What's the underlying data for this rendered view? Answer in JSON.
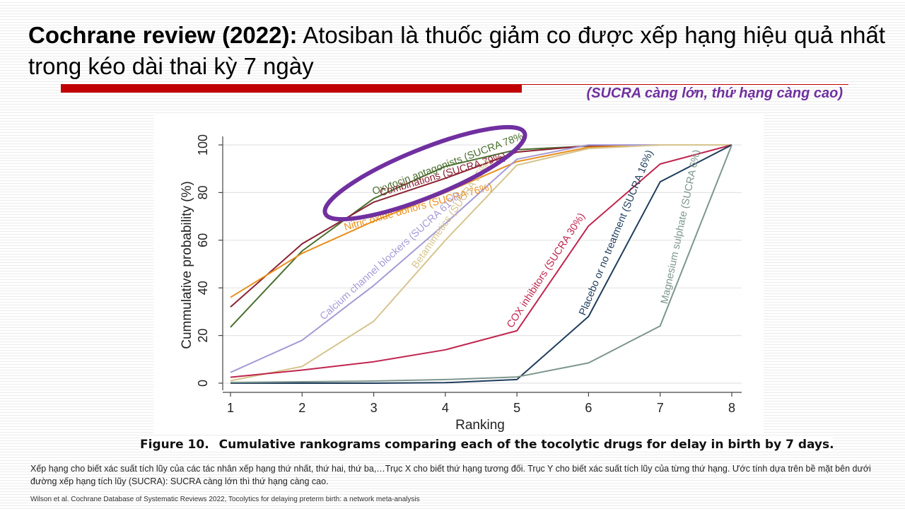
{
  "slide": {
    "title_bold": "Cochrane review (2022):",
    "title_rest": " Atosiban là thuốc giảm co được xếp hạng hiệu quả nhất trong kéo dài thai kỳ 7 ngày",
    "note": "(SUCRA càng lớn, thứ hạng càng cao)",
    "caption_label": "Figure 10.",
    "caption_text": "Cumulative rankograms comparing each of the tocolytic drugs for delay in birth by 7 days.",
    "description": "Xếp hạng cho biết xác suất tích lũy của các tác nhân xếp hạng thứ nhất, thứ hai, thứ ba,…Trục X cho biết thứ hạng tương đối. Trục Y cho biết xác suất tích lũy của từng thứ hạng. Ước tính dựa trên bề mặt bên dưới đường xếp hạng tích lũy (SUCRA): SUCRA càng lớn thì thứ hạng càng cao.",
    "source": "Wilson et al. Cochrane Database of Systematic Reviews 2022, Tocolytics for delaying preterm birth: a network meta-analysis",
    "colors": {
      "title_bar": "#c00000",
      "note": "#7030a0",
      "highlight": "#7030a0"
    }
  },
  "chart_data": {
    "type": "line",
    "xlabel": "Ranking",
    "ylabel": "Cummulative probability (%)",
    "x": [
      1,
      2,
      3,
      4,
      5,
      6,
      7,
      8
    ],
    "xlim": [
      1,
      8
    ],
    "ylim": [
      0,
      100
    ],
    "yticks": [
      0,
      20,
      40,
      60,
      80,
      100
    ],
    "grid": true,
    "highlighted_series": "Oxytocin antagonists (SUCRA 78%)",
    "series": [
      {
        "name": "Oxytocin antagonists (SUCRA 78%)",
        "color": "#4a6e2e",
        "values": [
          23.5,
          55.5,
          77.5,
          91,
          98,
          99.5,
          100,
          100
        ]
      },
      {
        "name": "Combinations (SUCRA 79%)",
        "color": "#8b2233",
        "values": [
          32,
          58.5,
          76,
          86,
          97,
          99.7,
          100,
          100
        ]
      },
      {
        "name": "Nitric oxide donors (SUCRA 76%)",
        "color": "#e8901e",
        "values": [
          36,
          54.5,
          68,
          80,
          93,
          99,
          100,
          100
        ]
      },
      {
        "name": "Calcium channel blockers (SUCRA 61%)",
        "color": "#a79ad6",
        "values": [
          4.5,
          18,
          41,
          67,
          94,
          100,
          100,
          100
        ]
      },
      {
        "name": "Betamimetics (SUCRA 55%)",
        "color": "#d6c48e",
        "values": [
          1,
          7,
          26,
          60,
          91.5,
          98.5,
          100,
          100
        ]
      },
      {
        "name": "COX inhibitors (SUCRA 30%)",
        "color": "#c0254e",
        "values": [
          2.5,
          5.5,
          9,
          14,
          22,
          66,
          92,
          100
        ]
      },
      {
        "name": "Placebo or no treatment (SUCRA 16%)",
        "color": "#1f3d5c",
        "values": [
          0,
          0,
          0,
          0.2,
          1.5,
          28,
          84.5,
          100
        ]
      },
      {
        "name": "Magnesium sulphate (SUCRA 6%)",
        "color": "#7d968c",
        "values": [
          0.3,
          0.6,
          0.9,
          1.5,
          2.6,
          8.5,
          24,
          100
        ]
      }
    ]
  }
}
